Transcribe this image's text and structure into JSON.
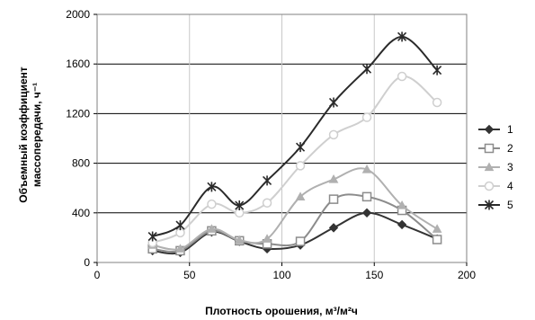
{
  "chart_data": {
    "type": "line",
    "title": "",
    "xlabel": "Плотность орошения, м³/м²ч",
    "ylabel_line1": "Объемный коэффициент",
    "ylabel_line2": "массопередачи, ч⁻¹",
    "xlim": [
      0,
      200
    ],
    "ylim": [
      0,
      2000
    ],
    "x_ticks": [
      0,
      50,
      100,
      150,
      200
    ],
    "y_ticks": [
      0,
      400,
      800,
      1200,
      1600,
      2000
    ],
    "x_tick_labels": [
      "0",
      "50",
      "100",
      "150",
      "200"
    ],
    "y_tick_labels": [
      "0",
      "400",
      "800",
      "1200",
      "1600",
      "2000"
    ],
    "grid": "vertical-gray-horizontal-black",
    "legend_position": "right",
    "series": [
      {
        "name": "1",
        "color": "#333333",
        "marker": "diamond",
        "x": [
          30,
          45,
          62,
          77,
          92,
          110,
          128,
          146,
          165,
          184
        ],
        "y": [
          95,
          80,
          245,
          170,
          110,
          140,
          280,
          400,
          305,
          190
        ]
      },
      {
        "name": "2",
        "color": "#8c8c8c",
        "marker": "square",
        "x": [
          30,
          45,
          62,
          77,
          92,
          110,
          128,
          146,
          165,
          184
        ],
        "y": [
          110,
          95,
          255,
          175,
          150,
          170,
          510,
          530,
          420,
          185
        ]
      },
      {
        "name": "3",
        "color": "#b0b0b0",
        "marker": "triangle",
        "x": [
          30,
          45,
          62,
          77,
          92,
          110,
          128,
          146,
          165,
          184
        ],
        "y": [
          140,
          110,
          270,
          180,
          190,
          530,
          670,
          750,
          460,
          270
        ]
      },
      {
        "name": "4",
        "color": "#cfcfcf",
        "marker": "circle",
        "x": [
          30,
          45,
          62,
          77,
          92,
          110,
          128,
          146,
          165,
          184
        ],
        "y": [
          160,
          240,
          470,
          400,
          480,
          780,
          1030,
          1170,
          1500,
          1290
        ]
      },
      {
        "name": "5",
        "color": "#2a2a2a",
        "marker": "star",
        "x": [
          30,
          45,
          62,
          77,
          92,
          110,
          128,
          146,
          165,
          184
        ],
        "y": [
          210,
          300,
          610,
          460,
          660,
          930,
          1290,
          1560,
          1820,
          1550
        ]
      }
    ]
  }
}
